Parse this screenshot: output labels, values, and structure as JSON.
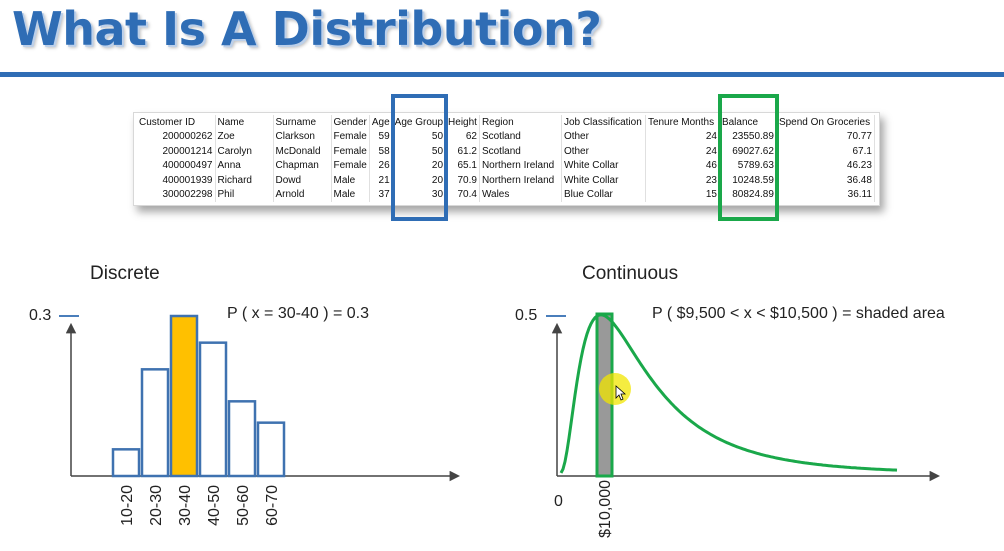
{
  "title": "What Is A Distribution?",
  "colors": {
    "accent": "#2f6db5",
    "bar_highlight": "#ffc000",
    "green": "#1aa84a",
    "shade": "#999999",
    "cursor": "#f2e600"
  },
  "table": {
    "headers": [
      "Customer ID",
      "Name",
      "Surname",
      "Gender",
      "Age",
      "Age Group",
      "Height",
      "Region",
      "Job Classification",
      "Tenure Months",
      "Balance",
      "Spend On Groceries"
    ],
    "rows": [
      [
        "200000262",
        "Zoe",
        "Clarkson",
        "Female",
        "59",
        "50",
        "62",
        "Scotland",
        "Other",
        "24",
        "23550.89",
        "70.77"
      ],
      [
        "200001214",
        "Carolyn",
        "McDonald",
        "Female",
        "58",
        "50",
        "61.2",
        "Scotland",
        "Other",
        "24",
        "69027.62",
        "67.1"
      ],
      [
        "400000497",
        "Anna",
        "Chapman",
        "Female",
        "26",
        "20",
        "65.1",
        "Northern Ireland",
        "White Collar",
        "46",
        "5789.63",
        "46.23"
      ],
      [
        "400001939",
        "Richard",
        "Dowd",
        "Male",
        "21",
        "20",
        "70.9",
        "Northern Ireland",
        "White Collar",
        "23",
        "10248.59",
        "36.48"
      ],
      [
        "300002298",
        "Phil",
        "Arnold",
        "Male",
        "37",
        "30",
        "70.4",
        "Wales",
        "Blue Collar",
        "15",
        "80824.89",
        "36.11"
      ]
    ]
  },
  "chart_data": [
    {
      "type": "bar",
      "title": "Discrete",
      "categories": [
        "10-20",
        "20-30",
        "30-40",
        "40-50",
        "50-60",
        "60-70"
      ],
      "values": [
        0.05,
        0.2,
        0.3,
        0.25,
        0.14,
        0.1
      ],
      "highlight_category": "30-40",
      "ytick_label": "0.3",
      "ytick_value": 0.3,
      "annotation": "P ( x = 30-40 ) = 0.3"
    },
    {
      "type": "line",
      "title": "Continuous",
      "x_tick_label": "$10,000",
      "origin_label": "0",
      "ytick_label": "0.5",
      "ytick_value": 0.5,
      "peak_y": 0.5,
      "shaded_interval_label": "$9,500 < x < $10,500",
      "annotation": "P ( $9,500 < x < $10,500 ) = shaded area"
    }
  ]
}
